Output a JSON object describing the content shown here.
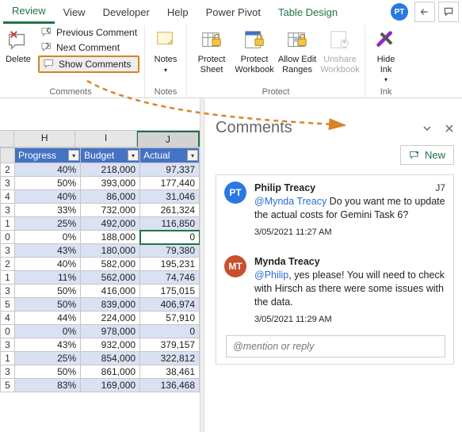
{
  "tabs": {
    "review": "Review",
    "view": "View",
    "developer": "Developer",
    "help": "Help",
    "power_pivot": "Power Pivot",
    "table_design": "Table Design",
    "user_initials": "PT"
  },
  "ribbon": {
    "comments": {
      "delete": "Delete",
      "previous": "Previous Comment",
      "next": "Next Comment",
      "show": "Show Comments",
      "group": "Comments"
    },
    "notes": {
      "btn": "Notes",
      "group": "Notes"
    },
    "protect": {
      "sheet": "Protect Sheet",
      "workbook": "Protect Workbook",
      "ranges": "Allow Edit Ranges",
      "unshare": "Unshare Workbook",
      "group": "Protect"
    },
    "ink": {
      "hide": "Hide Ink",
      "group": "Ink"
    }
  },
  "columns": {
    "H": "H",
    "I": "I",
    "J": "J"
  },
  "table": {
    "headers": {
      "progress": "Progress",
      "budget": "Budget",
      "actual": "Actual"
    },
    "rows": [
      {
        "i": "2",
        "p": "40%",
        "b": "218,000",
        "a": "97,337",
        "band": true
      },
      {
        "i": "3",
        "p": "50%",
        "b": "393,000",
        "a": "177,440"
      },
      {
        "i": "4",
        "p": "40%",
        "b": "86,000",
        "a": "31,046",
        "band": true
      },
      {
        "i": "3",
        "p": "33%",
        "b": "732,000",
        "a": "261,324"
      },
      {
        "i": "1",
        "p": "25%",
        "b": "492,000",
        "a": "116,850",
        "band": true
      },
      {
        "i": "0",
        "p": "0%",
        "b": "188,000",
        "a": "0",
        "sel": true
      },
      {
        "i": "3",
        "p": "43%",
        "b": "180,000",
        "a": "79,380",
        "band": true
      },
      {
        "i": "2",
        "p": "40%",
        "b": "582,000",
        "a": "195,231"
      },
      {
        "i": "1",
        "p": "11%",
        "b": "562,000",
        "a": "74,746",
        "band": true
      },
      {
        "i": "3",
        "p": "50%",
        "b": "416,000",
        "a": "175,015"
      },
      {
        "i": "5",
        "p": "50%",
        "b": "839,000",
        "a": "406,974",
        "band": true
      },
      {
        "i": "4",
        "p": "44%",
        "b": "224,000",
        "a": "57,910"
      },
      {
        "i": "0",
        "p": "0%",
        "b": "978,000",
        "a": "0",
        "band": true
      },
      {
        "i": "3",
        "p": "43%",
        "b": "932,000",
        "a": "379,157"
      },
      {
        "i": "1",
        "p": "25%",
        "b": "854,000",
        "a": "322,812",
        "band": true
      },
      {
        "i": "3",
        "p": "50%",
        "b": "861,000",
        "a": "38,461"
      },
      {
        "i": "5",
        "p": "83%",
        "b": "169,000",
        "a": "136,468",
        "band": true
      }
    ]
  },
  "panel": {
    "title": "Comments",
    "new": "New",
    "reply_placeholder": "@mention or reply",
    "comments": [
      {
        "initials": "PT",
        "color": "#2b78e4",
        "author": "Philip Treacy",
        "cell": "J7",
        "mention": "@Mynda Treacy",
        "text": " Do you want me to update the actual costs for Gemini Task 6?",
        "ts": "3/05/2021 11:27 AM"
      },
      {
        "initials": "MT",
        "color": "#c94f2e",
        "author": "Mynda Treacy",
        "cell": "",
        "mention": "@Philip",
        "text": ", yes please! You will need to check with Hirsch as there were some issues with the data.",
        "ts": "3/05/2021 11:29 AM"
      }
    ]
  }
}
